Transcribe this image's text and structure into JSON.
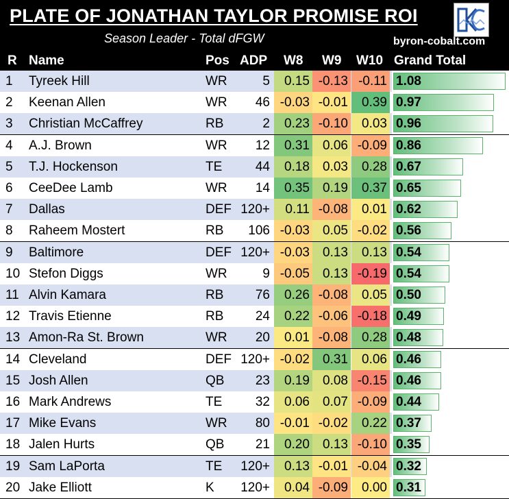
{
  "title": "PLATE OF JONATHAN TAYLOR PROMISE ROI",
  "subtitle": "Season Leader - Total dFGW",
  "brand": "byron-cobalt.com",
  "logo_icon": "kc-monogram-logo",
  "colors": {
    "background": "#000000",
    "row_odd": "#d9e0f1",
    "row_even": "#ffffff",
    "scale_low": "#f8696b",
    "scale_mid": "#ffeb84",
    "scale_high": "#63be7b",
    "bar": "#63be7b"
  },
  "chart_data": {
    "type": "table",
    "columns": [
      "R",
      "Name",
      "Pos",
      "ADP",
      "W8",
      "W9",
      "W10",
      "Grand Total"
    ],
    "rows": [
      {
        "r": "1",
        "name": "Tyreek Hill",
        "pos": "WR",
        "adp": "5",
        "w8": "0.15",
        "w9": "-0.13",
        "w10": "-0.11",
        "total": "1.08"
      },
      {
        "r": "2",
        "name": "Keenan Allen",
        "pos": "WR",
        "adp": "46",
        "w8": "-0.03",
        "w9": "-0.01",
        "w10": "0.39",
        "total": "0.97"
      },
      {
        "r": "3",
        "name": "Christian McCaffrey",
        "pos": "RB",
        "adp": "2",
        "w8": "0.23",
        "w9": "-0.10",
        "w10": "0.03",
        "total": "0.96"
      },
      {
        "r": "4",
        "name": "A.J. Brown",
        "pos": "WR",
        "adp": "12",
        "w8": "0.31",
        "w9": "0.06",
        "w10": "-0.09",
        "total": "0.86"
      },
      {
        "r": "5",
        "name": "T.J. Hockenson",
        "pos": "TE",
        "adp": "44",
        "w8": "0.18",
        "w9": "0.03",
        "w10": "0.28",
        "total": "0.67"
      },
      {
        "r": "6",
        "name": "CeeDee Lamb",
        "pos": "WR",
        "adp": "14",
        "w8": "0.35",
        "w9": "0.19",
        "w10": "0.37",
        "total": "0.65"
      },
      {
        "r": "7",
        "name": "Dallas",
        "pos": "DEF",
        "adp": "120+",
        "w8": "0.11",
        "w9": "-0.08",
        "w10": "0.01",
        "total": "0.62"
      },
      {
        "r": "8",
        "name": "Raheem Mostert",
        "pos": "RB",
        "adp": "106",
        "w8": "-0.03",
        "w9": "0.05",
        "w10": "-0.02",
        "total": "0.56"
      },
      {
        "r": "9",
        "name": "Baltimore",
        "pos": "DEF",
        "adp": "120+",
        "w8": "-0.03",
        "w9": "0.13",
        "w10": "0.13",
        "total": "0.54"
      },
      {
        "r": "10",
        "name": "Stefon Diggs",
        "pos": "WR",
        "adp": "9",
        "w8": "-0.05",
        "w9": "0.13",
        "w10": "-0.19",
        "total": "0.54"
      },
      {
        "r": "11",
        "name": "Alvin Kamara",
        "pos": "RB",
        "adp": "76",
        "w8": "0.26",
        "w9": "-0.08",
        "w10": "0.05",
        "total": "0.50"
      },
      {
        "r": "12",
        "name": "Travis Etienne",
        "pos": "RB",
        "adp": "24",
        "w8": "0.22",
        "w9": "-0.06",
        "w10": "-0.18",
        "total": "0.49"
      },
      {
        "r": "13",
        "name": "Amon-Ra St. Brown",
        "pos": "WR",
        "adp": "20",
        "w8": "0.01",
        "w9": "-0.08",
        "w10": "0.28",
        "total": "0.48"
      },
      {
        "r": "14",
        "name": "Cleveland",
        "pos": "DEF",
        "adp": "120+",
        "w8": "-0.02",
        "w9": "0.31",
        "w10": "0.06",
        "total": "0.46"
      },
      {
        "r": "15",
        "name": "Josh Allen",
        "pos": "QB",
        "adp": "23",
        "w8": "0.19",
        "w9": "0.08",
        "w10": "-0.15",
        "total": "0.46"
      },
      {
        "r": "16",
        "name": "Mark Andrews",
        "pos": "TE",
        "adp": "32",
        "w8": "0.06",
        "w9": "0.07",
        "w10": "-0.09",
        "total": "0.44"
      },
      {
        "r": "17",
        "name": "Mike Evans",
        "pos": "WR",
        "adp": "80",
        "w8": "-0.01",
        "w9": "-0.02",
        "w10": "0.22",
        "total": "0.37"
      },
      {
        "r": "18",
        "name": "Jalen Hurts",
        "pos": "QB",
        "adp": "21",
        "w8": "0.20",
        "w9": "0.13",
        "w10": "-0.10",
        "total": "0.35"
      },
      {
        "r": "19",
        "name": "Sam LaPorta",
        "pos": "TE",
        "adp": "120+",
        "w8": "0.13",
        "w9": "-0.01",
        "w10": "-0.04",
        "total": "0.32"
      },
      {
        "r": "20",
        "name": "Jake Elliott",
        "pos": "K",
        "adp": "120+",
        "w8": "0.04",
        "w9": "-0.09",
        "w10": "0.00",
        "total": "0.31"
      }
    ]
  }
}
